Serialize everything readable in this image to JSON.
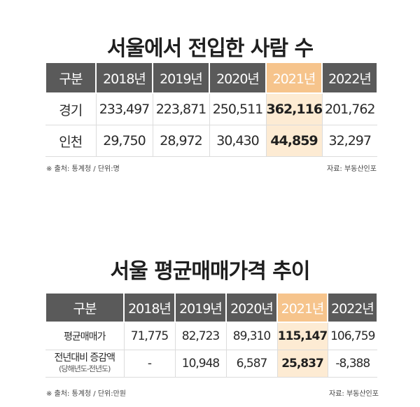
{
  "table1": {
    "title": "서울에서 전입한 사람 수",
    "headers": [
      "구분",
      "2018년",
      "2019년",
      "2020년",
      "2021년",
      "2022년"
    ],
    "rows": [
      {
        "label": "경기",
        "values": [
          "233,497",
          "223,871",
          "250,511",
          "362,116",
          "201,762"
        ]
      },
      {
        "label": "인천",
        "values": [
          "29,750",
          "28,972",
          "30,430",
          "44,859",
          "32,297"
        ]
      }
    ],
    "highlight_color": "#f6c48c",
    "note": "※ 출처: 통계청 / 단위:명",
    "source": "자료: 부동산인포"
  },
  "table2": {
    "title": "서울 평균매매가격 추이",
    "headers": [
      "구분",
      "2018년",
      "2019년",
      "2020년",
      "2021년",
      "2022년"
    ],
    "rows": [
      {
        "label": "평균매매가",
        "sublabel": "",
        "values": [
          "71,775",
          "82,723",
          "89,310",
          "115,147",
          "106,759"
        ]
      },
      {
        "label": "전년대비 증감액",
        "sublabel": "(당해년도-전년도)",
        "values": [
          "-",
          "10,948",
          "6,587",
          "25,837",
          "-8,388"
        ]
      }
    ],
    "note": "※ 출처: 통계청 / 단위:만원",
    "source": "자료: 부동산인포"
  },
  "colors": {
    "header_bg": "#5a5a5a",
    "highlight_header": "#f6c48c",
    "highlight_cell": "#fdebd3"
  }
}
